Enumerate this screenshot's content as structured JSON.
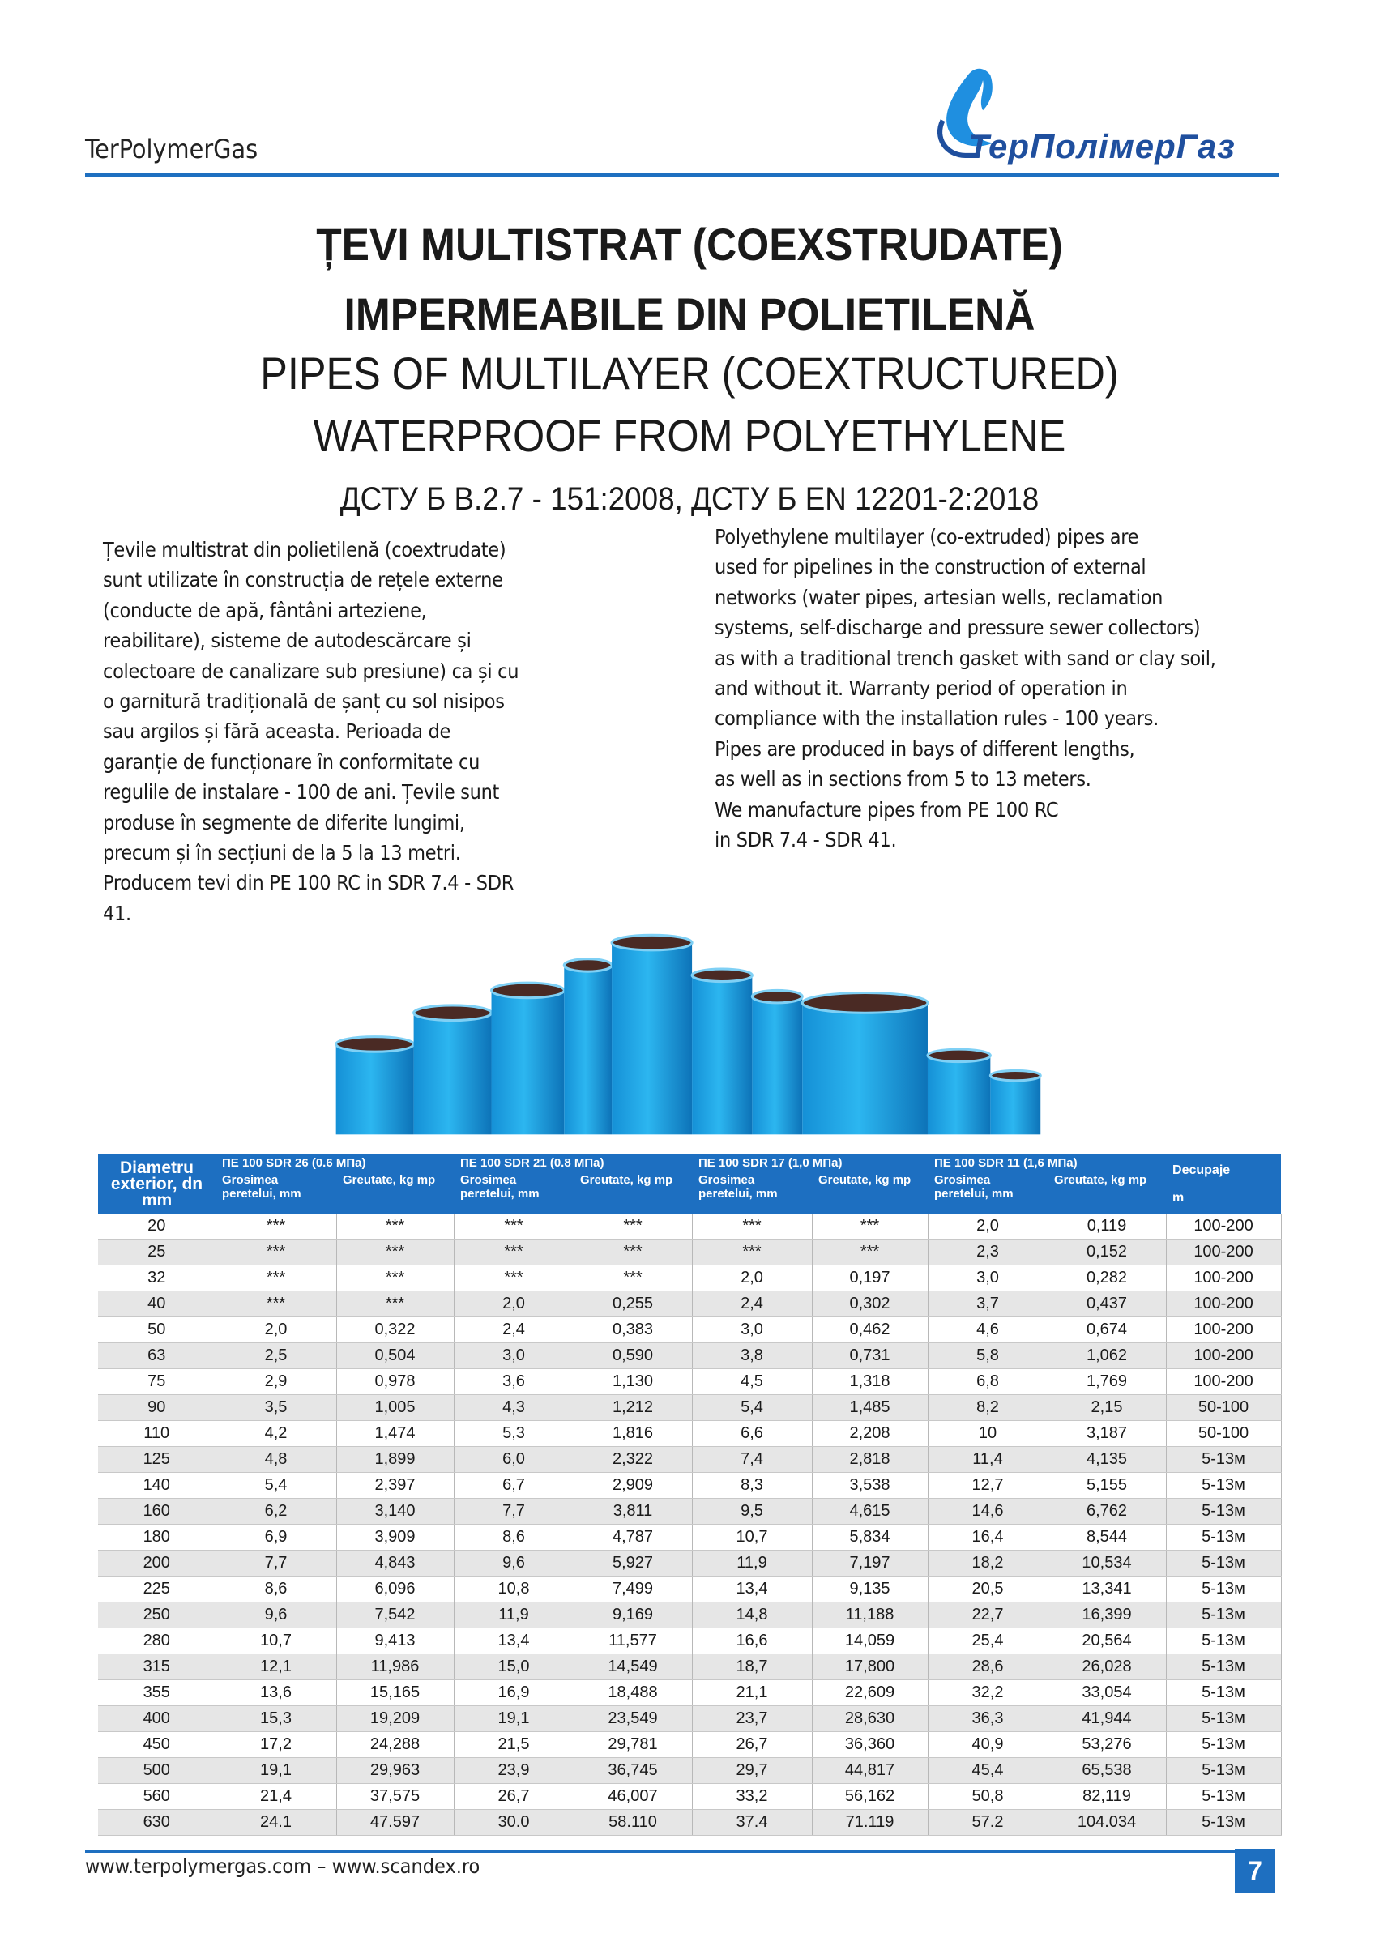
{
  "header": {
    "brand": "TerPolymerGas",
    "logo": "ТерПолімерГаз"
  },
  "title": {
    "lines": [
      "ȚEVI MULTISTRAT (COEXSTRUDATE)",
      "IMPERMEABILE DIN POLIETILENĂ",
      "PIPES OF MULTILAYER (COEXTRUCTURED)",
      "WATERPROOF FROM POLYETHYLENE"
    ],
    "standards": "ДСТУ Б В.2.7 - 151:2008, ДСТУ Б EN 12201-2:2018"
  },
  "text": {
    "ro": [
      "Țevile multistrat din polietilenă (coextrudate)",
      "sunt utilizate în construcția de rețele externe",
      "(conducte de apă, fântâni arteziene,",
      "reabilitare), sisteme de autodescărcare și",
      "colectoare de canalizare sub presiune) ca și cu",
      "o garnitură tradițională de șanț cu sol nisipos",
      "sau argilos și fără aceasta. Perioada de",
      "garanție de funcționare în conformitate cu",
      "regulile de instalare - 100 de ani. Țevile sunt",
      "produse în segmente de diferite lungimi,",
      "precum și în secțiuni de la 5 la 13 metri.",
      "Producem tevi din PE 100 RC in SDR 7.4 - SDR",
      "41."
    ],
    "en": [
      "Polyethylene multilayer (co-extruded) pipes are",
      "used for pipelines in the construction of external",
      "networks (water pipes, artesian wells, reclamation",
      "systems, self-discharge and pressure sewer collectors)",
      "as with a traditional trench gasket with sand or clay soil,",
      "and without it. Warranty period of operation in",
      "compliance with the installation rules - 100 years.",
      "Pipes are produced in bays of different lengths,",
      "as well as in sections from 5 to 13 meters.",
      "We manufacture pipes from PE 100 RC",
      "in SDR 7.4 - SDR 41."
    ]
  },
  "table": {
    "diameter": "Diametru exterior, dn mm",
    "groups": [
      "ПЕ 100 SDR 26 (0.6 МПа)",
      "ПЕ 100 SDR 21 (0.8 МПа)",
      "ПЕ 100 SDR 17 (1,0 МПа)",
      "ПЕ 100 SDR 11 (1,6 МПа)"
    ],
    "subheaders": [
      "Grosimea peretelui, mm",
      "Greutate, kg mp",
      "Grosimea peretelui, mm",
      "Greutate, kg mp",
      "Grosimea peretelui, mm",
      "Greutate, kg mp",
      "Grosimea peretelui, mm",
      "Greutate, kg mp"
    ],
    "cut": "Decupaje",
    "cut_unit": "m",
    "rows": [
      [
        "20",
        "***",
        "***",
        "***",
        "***",
        "***",
        "***",
        "2,0",
        "0,119",
        "100-200"
      ],
      [
        "25",
        "***",
        "***",
        "***",
        "***",
        "***",
        "***",
        "2,3",
        "0,152",
        "100-200"
      ],
      [
        "32",
        "***",
        "***",
        "***",
        "***",
        "2,0",
        "0,197",
        "3,0",
        "0,282",
        "100-200"
      ],
      [
        "40",
        "***",
        "***",
        "2,0",
        "0,255",
        "2,4",
        "0,302",
        "3,7",
        "0,437",
        "100-200"
      ],
      [
        "50",
        "2,0",
        "0,322",
        "2,4",
        "0,383",
        "3,0",
        "0,462",
        "4,6",
        "0,674",
        "100-200"
      ],
      [
        "63",
        "2,5",
        "0,504",
        "3,0",
        "0,590",
        "3,8",
        "0,731",
        "5,8",
        "1,062",
        "100-200"
      ],
      [
        "75",
        "2,9",
        "0,978",
        "3,6",
        "1,130",
        "4,5",
        "1,318",
        "6,8",
        "1,769",
        "100-200"
      ],
      [
        "90",
        "3,5",
        "1,005",
        "4,3",
        "1,212",
        "5,4",
        "1,485",
        "8,2",
        "2,15",
        "50-100"
      ],
      [
        "110",
        "4,2",
        "1,474",
        "5,3",
        "1,816",
        "6,6",
        "2,208",
        "10",
        "3,187",
        "50-100"
      ],
      [
        "125",
        "4,8",
        "1,899",
        "6,0",
        "2,322",
        "7,4",
        "2,818",
        "11,4",
        "4,135",
        "5-13м"
      ],
      [
        "140",
        "5,4",
        "2,397",
        "6,7",
        "2,909",
        "8,3",
        "3,538",
        "12,7",
        "5,155",
        "5-13м"
      ],
      [
        "160",
        "6,2",
        "3,140",
        "7,7",
        "3,811",
        "9,5",
        "4,615",
        "14,6",
        "6,762",
        "5-13м"
      ],
      [
        "180",
        "6,9",
        "3,909",
        "8,6",
        "4,787",
        "10,7",
        "5,834",
        "16,4",
        "8,544",
        "5-13м"
      ],
      [
        "200",
        "7,7",
        "4,843",
        "9,6",
        "5,927",
        "11,9",
        "7,197",
        "18,2",
        "10,534",
        "5-13м"
      ],
      [
        "225",
        "8,6",
        "6,096",
        "10,8",
        "7,499",
        "13,4",
        "9,135",
        "20,5",
        "13,341",
        "5-13м"
      ],
      [
        "250",
        "9,6",
        "7,542",
        "11,9",
        "9,169",
        "14,8",
        "11,188",
        "22,7",
        "16,399",
        "5-13м"
      ],
      [
        "280",
        "10,7",
        "9,413",
        "13,4",
        "11,577",
        "16,6",
        "14,059",
        "25,4",
        "20,564",
        "5-13м"
      ],
      [
        "315",
        "12,1",
        "11,986",
        "15,0",
        "14,549",
        "18,7",
        "17,800",
        "28,6",
        "26,028",
        "5-13м"
      ],
      [
        "355",
        "13,6",
        "15,165",
        "16,9",
        "18,488",
        "21,1",
        "22,609",
        "32,2",
        "33,054",
        "5-13м"
      ],
      [
        "400",
        "15,3",
        "19,209",
        "19,1",
        "23,549",
        "23,7",
        "28,630",
        "36,3",
        "41,944",
        "5-13м"
      ],
      [
        "450",
        "17,2",
        "24,288",
        "21,5",
        "29,781",
        "26,7",
        "36,360",
        "40,9",
        "53,276",
        "5-13м"
      ],
      [
        "500",
        "19,1",
        "29,963",
        "23,9",
        "36,745",
        "29,7",
        "44,817",
        "45,4",
        "65,538",
        "5-13м"
      ],
      [
        "560",
        "21,4",
        "37,575",
        "26,7",
        "46,007",
        "33,2",
        "56,162",
        "50,8",
        "82,119",
        "5-13м"
      ],
      [
        "630",
        "24.1",
        "47.597",
        "30.0",
        "58.110",
        "37.4",
        "71.119",
        "57.2",
        "104.034",
        "5-13м"
      ]
    ]
  },
  "footer": {
    "links": "www.terpolymergas.com – www.scandex.ro",
    "page": "7"
  }
}
